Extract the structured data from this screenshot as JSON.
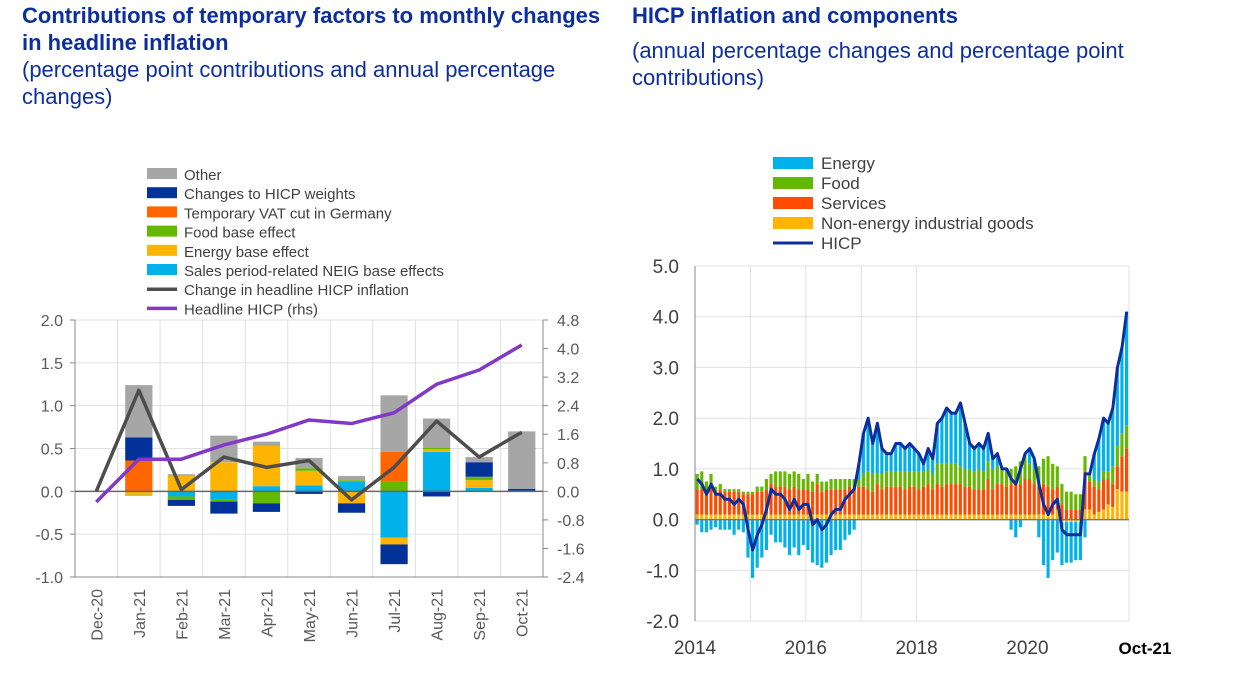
{
  "left": {
    "title": "Contributions of temporary factors to monthly changes in headline inflation",
    "subtitle": "(percentage point contributions and annual percentage changes)"
  },
  "right": {
    "title": "HICP inflation and components",
    "subtitle": "(annual percentage changes and percentage point contributions)"
  },
  "chart_data": [
    {
      "type": "bar",
      "stacked": true,
      "categories": [
        "Dec-20",
        "Jan-21",
        "Feb-21",
        "Mar-21",
        "Apr-21",
        "May-21",
        "Jun-21",
        "Jul-21",
        "Aug-21",
        "Sep-21",
        "Oct-21"
      ],
      "ylim": [
        -1.0,
        2.0
      ],
      "yticks": [
        "2.0",
        "1.5",
        "1.0",
        "0.5",
        "0.0",
        "-0.5",
        "-1.0"
      ],
      "y2lim": [
        -2.4,
        4.8
      ],
      "y2ticks": [
        "4.8",
        "4.0",
        "3.2",
        "2.4",
        "1.6",
        "0.8",
        "0.0",
        "-0.8",
        "-1.6",
        "-2.4"
      ],
      "grid": true,
      "legend_position": "top",
      "series": [
        {
          "name": "Sales period-related NEIG base effects",
          "color": "#00b1ea",
          "values": [
            0,
            0,
            -0.06,
            -0.1,
            0.06,
            0.07,
            0.11,
            -0.54,
            0.46,
            0.04,
            0.01
          ]
        },
        {
          "name": "Energy base effect",
          "color": "#ffb400",
          "values": [
            0,
            -0.04,
            0.18,
            0.34,
            0.47,
            0.17,
            -0.14,
            -0.08,
            0.03,
            0.09,
            0
          ]
        },
        {
          "name": "Food base effect",
          "color": "#65b800",
          "values": [
            0,
            -0.01,
            -0.04,
            -0.02,
            -0.14,
            0.03,
            0.02,
            0.11,
            0.02,
            0.04,
            0
          ]
        },
        {
          "name": "Temporary VAT cut in Germany",
          "color": "#ff6600",
          "values": [
            0,
            0.36,
            0,
            0,
            0,
            0,
            0,
            0.35,
            0,
            0,
            0
          ]
        },
        {
          "name": "Changes to HICP weights",
          "color": "#003299",
          "values": [
            0,
            0.27,
            -0.07,
            -0.14,
            -0.1,
            -0.03,
            -0.11,
            -0.23,
            -0.06,
            0.17,
            0.02
          ]
        },
        {
          "name": "Other",
          "color": "#a6a6a6",
          "values": [
            0,
            0.61,
            0.02,
            0.31,
            0.05,
            0.12,
            0.05,
            0.66,
            0.34,
            0.06,
            0.67
          ]
        }
      ],
      "lines": [
        {
          "name": "Change in headline HICP inflation",
          "color": "#4d4d4d",
          "axis": "left",
          "values": [
            0,
            1.18,
            0.02,
            0.4,
            0.28,
            0.36,
            -0.1,
            0.28,
            0.82,
            0.4,
            0.69
          ]
        },
        {
          "name": "Headline HICP (rhs)",
          "color": "#8139c6",
          "axis": "right",
          "values": [
            -0.3,
            0.9,
            0.9,
            1.3,
            1.6,
            2.0,
            1.9,
            2.2,
            3.0,
            3.4,
            4.1
          ]
        }
      ],
      "legend_order": [
        "Other",
        "Changes to HICP weights",
        "Temporary VAT cut in Germany",
        "Food base effect",
        "Energy base effect",
        "Sales period-related NEIG base effects",
        "Change in headline HICP inflation",
        "Headline HICP (rhs)"
      ]
    },
    {
      "type": "bar",
      "stacked": true,
      "x_start": "Jan-2014",
      "x_end": "Oct-2021",
      "xticks": [
        "2014",
        "2016",
        "2018",
        "2020",
        "Oct-21"
      ],
      "ylim": [
        -2.0,
        5.0
      ],
      "yticks": [
        "5.0",
        "4.0",
        "3.0",
        "2.0",
        "1.0",
        "0.0",
        "-1.0",
        "-2.0"
      ],
      "grid": true,
      "legend_position": "top-left",
      "series": [
        {
          "name": "Non-energy industrial goods",
          "color": "#ffb400",
          "values": [
            0.1,
            0.1,
            0.1,
            0.1,
            0.1,
            0.1,
            0.1,
            0.1,
            0.1,
            0.1,
            0.1,
            0.1,
            0.1,
            0.1,
            0.1,
            0.1,
            0.1,
            0.1,
            0.1,
            0.1,
            0.1,
            0.1,
            0.1,
            0.1,
            0.1,
            0.1,
            0.1,
            0.1,
            0.1,
            0.1,
            0.1,
            0.1,
            0.1,
            0.1,
            0.1,
            0.1,
            0.1,
            0.1,
            0.1,
            0.1,
            0.1,
            0.1,
            0.1,
            0.1,
            0.1,
            0.1,
            0.1,
            0.1,
            0.1,
            0.1,
            0.1,
            0.1,
            0.1,
            0.1,
            0.1,
            0.1,
            0.1,
            0.1,
            0.1,
            0.1,
            0.1,
            0.1,
            0.1,
            0.1,
            0.1,
            0.1,
            0.1,
            0.1,
            0.1,
            0.1,
            0.1,
            0.1,
            0.1,
            0.1,
            0.1,
            0.1,
            0.1,
            0.1,
            0.2,
            -0.05,
            -0.05,
            -0.05,
            -0.05,
            -0.05,
            0.2,
            0.2,
            0.1,
            0.15,
            0.2,
            0.3,
            0.25,
            0.6,
            0.55,
            0.55
          ]
        },
        {
          "name": "Services",
          "color": "#ff4b00",
          "values": [
            0.5,
            0.5,
            0.45,
            0.55,
            0.45,
            0.5,
            0.45,
            0.45,
            0.45,
            0.45,
            0.4,
            0.4,
            0.4,
            0.45,
            0.45,
            0.5,
            0.6,
            0.55,
            0.55,
            0.55,
            0.5,
            0.55,
            0.5,
            0.5,
            0.5,
            0.45,
            0.6,
            0.45,
            0.5,
            0.5,
            0.5,
            0.5,
            0.5,
            0.55,
            0.5,
            0.55,
            0.55,
            0.5,
            0.45,
            0.6,
            0.5,
            0.55,
            0.55,
            0.55,
            0.55,
            0.5,
            0.55,
            0.55,
            0.5,
            0.55,
            0.6,
            0.5,
            0.6,
            0.55,
            0.6,
            0.6,
            0.6,
            0.6,
            0.55,
            0.55,
            0.5,
            0.5,
            0.5,
            0.7,
            0.5,
            0.6,
            0.6,
            0.55,
            0.6,
            0.6,
            0.6,
            0.7,
            0.7,
            0.6,
            0.55,
            0.6,
            0.55,
            0.5,
            0.45,
            0.3,
            0.2,
            0.2,
            0.2,
            0.2,
            0.75,
            0.55,
            0.55,
            0.45,
            0.6,
            0.5,
            0.45,
            0.45,
            0.7,
            0.85
          ]
        },
        {
          "name": "Food",
          "color": "#65b800",
          "values": [
            0.3,
            0.35,
            0.2,
            0.25,
            0.1,
            0.1,
            0.05,
            0.05,
            0.05,
            0.05,
            0.05,
            0.05,
            0.05,
            0.1,
            0.1,
            0.2,
            0.2,
            0.3,
            0.3,
            0.3,
            0.3,
            0.3,
            0.3,
            0.2,
            0.3,
            0.2,
            0.2,
            0.2,
            0.15,
            0.2,
            0.2,
            0.2,
            0.2,
            0.15,
            0.2,
            0.15,
            0.25,
            0.35,
            0.35,
            0.2,
            0.3,
            0.3,
            0.3,
            0.3,
            0.3,
            0.35,
            0.3,
            0.3,
            0.35,
            0.3,
            0.3,
            0.3,
            0.4,
            0.45,
            0.4,
            0.4,
            0.4,
            0.35,
            0.35,
            0.35,
            0.35,
            0.4,
            0.35,
            0.35,
            0.4,
            0.35,
            0.3,
            0.3,
            0.3,
            0.35,
            0.45,
            0.45,
            0.3,
            0.3,
            0.4,
            0.5,
            0.6,
            0.5,
            0.4,
            0.4,
            0.35,
            0.35,
            0.3,
            0.3,
            0.3,
            0.15,
            0.15,
            0.15,
            0.15,
            0.15,
            0.35,
            0.4,
            0.45,
            0.45
          ]
        },
        {
          "name": "Energy",
          "color": "#00b1ea",
          "values": [
            -0.1,
            -0.25,
            -0.25,
            -0.2,
            -0.15,
            -0.2,
            -0.2,
            -0.2,
            -0.3,
            -0.2,
            -0.25,
            -0.75,
            -1.15,
            -0.95,
            -0.75,
            -0.6,
            -0.3,
            -0.45,
            -0.45,
            -0.55,
            -0.7,
            -0.55,
            -0.7,
            -0.5,
            -0.6,
            -0.85,
            -0.9,
            -0.95,
            -0.85,
            -0.7,
            -0.6,
            -0.6,
            -0.4,
            -0.3,
            -0.2,
            0.3,
            0.8,
            1.05,
            0.6,
            1.0,
            0.5,
            0.35,
            0.35,
            0.55,
            0.55,
            0.45,
            0.55,
            0.45,
            0.35,
            0.15,
            0.4,
            0.3,
            0.8,
            0.9,
            1.1,
            1.0,
            1.0,
            1.25,
            0.9,
            0.5,
            0.45,
            0.5,
            0.45,
            0.55,
            0.2,
            0.25,
            0.0,
            0.05,
            -0.2,
            -0.35,
            -0.15,
            0.05,
            0.3,
            0.2,
            -0.35,
            -0.9,
            -1.15,
            -0.8,
            -0.65,
            -0.85,
            -0.8,
            -0.8,
            -0.75,
            -0.75,
            -0.35,
            0.0,
            0.5,
            0.85,
            1.05,
            0.95,
            1.15,
            1.55,
            1.7,
            2.25
          ]
        }
      ],
      "lines": [
        {
          "name": "HICP",
          "color": "#0d2f9e",
          "values": [
            0.8,
            0.7,
            0.5,
            0.7,
            0.5,
            0.5,
            0.4,
            0.4,
            0.3,
            0.4,
            0.3,
            -0.2,
            -0.6,
            -0.3,
            -0.1,
            0.2,
            0.6,
            0.5,
            0.5,
            0.4,
            0.2,
            0.4,
            0.2,
            0.3,
            0.3,
            -0.1,
            0.0,
            -0.2,
            -0.1,
            0.1,
            0.2,
            0.2,
            0.4,
            0.5,
            0.6,
            1.1,
            1.7,
            2.0,
            1.5,
            1.9,
            1.4,
            1.3,
            1.3,
            1.5,
            1.5,
            1.4,
            1.5,
            1.4,
            1.3,
            1.1,
            1.4,
            1.2,
            1.9,
            2.0,
            2.2,
            2.1,
            2.1,
            2.3,
            1.9,
            1.5,
            1.4,
            1.5,
            1.4,
            1.7,
            1.2,
            1.3,
            1.0,
            1.0,
            0.8,
            0.7,
            1.0,
            1.3,
            1.4,
            1.2,
            0.7,
            0.3,
            0.1,
            0.3,
            0.4,
            -0.2,
            -0.3,
            -0.3,
            -0.3,
            -0.3,
            0.9,
            0.9,
            1.3,
            1.6,
            2.0,
            1.9,
            2.2,
            3.0,
            3.4,
            4.1
          ]
        }
      ],
      "legend_order": [
        "Energy",
        "Food",
        "Services",
        "Non-energy industrial goods",
        "HICP"
      ]
    }
  ]
}
